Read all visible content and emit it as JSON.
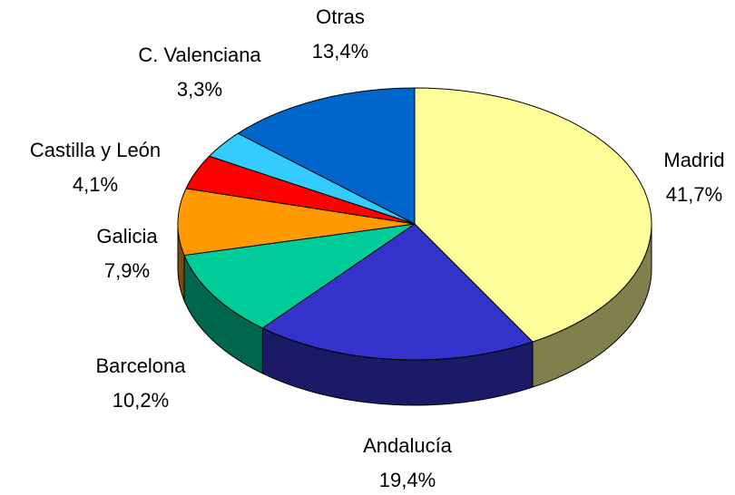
{
  "chart_data": {
    "type": "pie",
    "categories": [
      "Madrid",
      "Andalucía",
      "Barcelona",
      "Galicia",
      "Castilla y León",
      "C. Valenciana",
      "Otras"
    ],
    "values": [
      41.7,
      19.4,
      10.2,
      7.9,
      4.1,
      3.3,
      13.4
    ],
    "value_labels": [
      "41,7%",
      "19,4%",
      "10,2%",
      "7,9%",
      "4,1%",
      "3,3%",
      "13,4%"
    ],
    "colors": [
      "#ffff99",
      "#3333cc",
      "#00cc99",
      "#ff9900",
      "#ff0000",
      "#33ccff",
      "#0066cc"
    ]
  }
}
